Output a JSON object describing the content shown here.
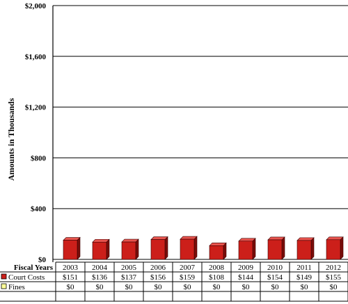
{
  "chart_data": {
    "type": "bar",
    "title": "",
    "xlabel": "Fiscal Years",
    "ylabel": "Amounts in Thousands",
    "ylim": [
      0,
      2000
    ],
    "yticks": [
      {
        "value": 0,
        "label": "$0"
      },
      {
        "value": 400,
        "label": "$400"
      },
      {
        "value": 800,
        "label": "$800"
      },
      {
        "value": 1200,
        "label": "$1,200"
      },
      {
        "value": 1600,
        "label": "$1,600"
      },
      {
        "value": 2000,
        "label": "$2,000"
      }
    ],
    "grid": true,
    "categories": [
      "2003",
      "2004",
      "2005",
      "2006",
      "2007",
      "2008",
      "2009",
      "2010",
      "2011",
      "2012"
    ],
    "series": [
      {
        "name": "Court Costs",
        "color": "#cc1f1a",
        "values": [
          151,
          136,
          137,
          156,
          159,
          108,
          144,
          154,
          149,
          155
        ],
        "labels": [
          "$151",
          "$136",
          "$137",
          "$156",
          "$159",
          "$108",
          "$144",
          "$154",
          "$149",
          "$155"
        ]
      },
      {
        "name": "Fines",
        "color": "#ffff99",
        "values": [
          0,
          0,
          0,
          0,
          0,
          0,
          0,
          0,
          0,
          0
        ],
        "labels": [
          "$0",
          "$0",
          "$0",
          "$0",
          "$0",
          "$0",
          "$0",
          "$0",
          "$0",
          "$0"
        ]
      }
    ],
    "legend": "table-left"
  }
}
